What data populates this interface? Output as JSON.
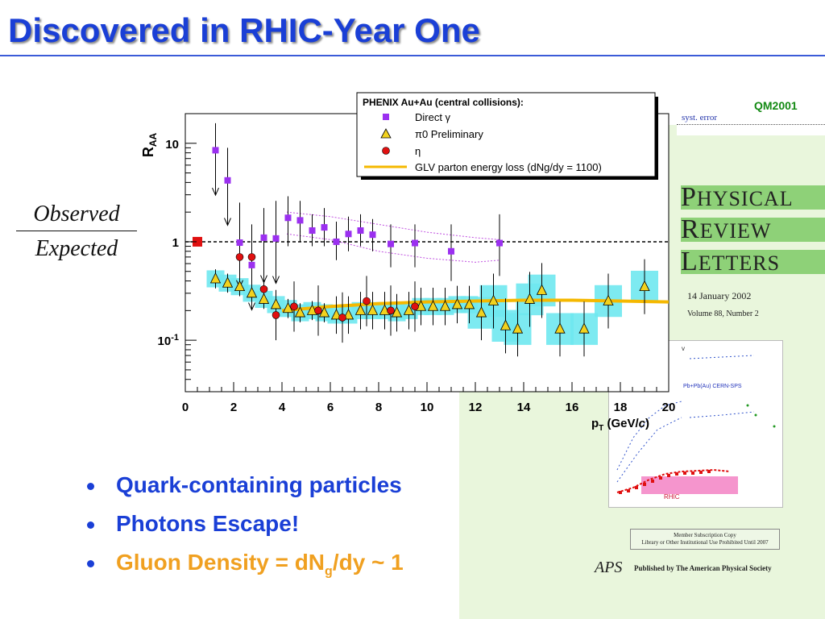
{
  "slide": {
    "title": "Discovered in RHIC-Year One",
    "fraction_numerator": "Observed",
    "fraction_denominator": "Expected",
    "badge": "QM2001",
    "bullets": [
      {
        "text": "Quark-containing particles",
        "color": "blue"
      },
      {
        "text": "Photons Escape!",
        "color": "blue"
      },
      {
        "text_pre": "Gluon Density = dN",
        "sub": "g",
        "text_post": "/dy ~ 1",
        "color": "orange"
      }
    ]
  },
  "journal": {
    "top_text": "syst. error",
    "words": [
      "HYSICAL",
      "EVIEW",
      "ETTERS"
    ],
    "initials": [
      "P",
      "R",
      "L"
    ],
    "date": "14 January 2002",
    "volume": "Volume 88, Number 2",
    "inset_label_sps": "Pb+Pb(Au) CERN-SPS",
    "inset_label_rhic": "RHIC",
    "subscription_line1": "Member Subscription Copy",
    "subscription_line2": "Library or Other Institutional Use Prohibited Until 2007",
    "aps_logo": "APS",
    "published_by": "Published by The American Physical Society"
  },
  "chart_data": {
    "type": "scatter",
    "y_scale": "log",
    "ylabel": "R_AA",
    "xlabel": "p_T (GeV/c)",
    "xlim": [
      0,
      20
    ],
    "ylim": [
      0.03,
      20
    ],
    "x_ticks": [
      "0",
      "2",
      "4",
      "6",
      "8",
      "10",
      "12",
      "14",
      "16",
      "18",
      "20"
    ],
    "y_ticks": [
      {
        "v": 10,
        "label": "10"
      },
      {
        "v": 1,
        "label": "1"
      },
      {
        "v": 0.1,
        "label": "10-1"
      }
    ],
    "reference_line": 1,
    "legend": {
      "title": "PHENIX Au+Au (central collisions):",
      "entries": [
        {
          "label": "Direct γ",
          "marker": "square",
          "color": "#9b30f0"
        },
        {
          "label": "π0 Preliminary",
          "marker": "triangle",
          "color": "#f2d21e"
        },
        {
          "label": "η",
          "marker": "circle",
          "color": "#e01010"
        },
        {
          "label": "GLV parton energy loss (dNg/dy = 1100)",
          "marker": "line",
          "color": "#f5b800"
        }
      ],
      "position": "top-right"
    },
    "series": [
      {
        "name": "Direct γ",
        "marker": "square",
        "color": "#9b30f0",
        "points": [
          {
            "x": 1.25,
            "y": 8.5,
            "upper": true,
            "err_hi": 16
          },
          {
            "x": 1.75,
            "y": 4.2,
            "upper": true,
            "err_hi": 9
          },
          {
            "x": 2.25,
            "y": 0.98,
            "upper": true,
            "err_hi": 2.5
          },
          {
            "x": 2.75,
            "y": 0.58,
            "upper": true,
            "err_hi": 1.5
          },
          {
            "x": 3.25,
            "y": 1.1,
            "upper": true,
            "err_hi": 2.2
          },
          {
            "x": 3.75,
            "y": 1.08,
            "upper": true,
            "err_hi": 2.6
          },
          {
            "x": 4.25,
            "y": 1.75,
            "err_lo": 0.9,
            "err_hi": 2.9
          },
          {
            "x": 4.75,
            "y": 1.65,
            "err_lo": 1.0,
            "err_hi": 2.6
          },
          {
            "x": 5.25,
            "y": 1.3,
            "err_lo": 0.9,
            "err_hi": 1.9
          },
          {
            "x": 5.75,
            "y": 1.4,
            "err_lo": 0.9,
            "err_hi": 2.2
          },
          {
            "x": 6.25,
            "y": 1.0,
            "err_lo": 0.65,
            "err_hi": 1.6
          },
          {
            "x": 6.75,
            "y": 1.2,
            "err_lo": 0.8,
            "err_hi": 1.8
          },
          {
            "x": 7.25,
            "y": 1.3,
            "err_lo": 0.9,
            "err_hi": 1.9
          },
          {
            "x": 7.75,
            "y": 1.18,
            "err_lo": 0.8,
            "err_hi": 1.7
          },
          {
            "x": 8.5,
            "y": 0.95,
            "err_lo": 0.55,
            "err_hi": 1.5
          },
          {
            "x": 9.5,
            "y": 0.97,
            "err_lo": 0.55,
            "err_hi": 1.5
          },
          {
            "x": 11,
            "y": 0.8,
            "err_lo": 0.4,
            "err_hi": 1.5
          },
          {
            "x": 13,
            "y": 0.97,
            "err_lo": 0.45,
            "err_hi": 1.9
          }
        ]
      },
      {
        "name": "π0 Preliminary",
        "marker": "triangle",
        "color": "#f2d21e",
        "points": [
          {
            "x": 1.25,
            "y": 0.42
          },
          {
            "x": 1.75,
            "y": 0.38
          },
          {
            "x": 2.25,
            "y": 0.35
          },
          {
            "x": 2.75,
            "y": 0.3
          },
          {
            "x": 3.25,
            "y": 0.26
          },
          {
            "x": 3.75,
            "y": 0.23
          },
          {
            "x": 4.25,
            "y": 0.21
          },
          {
            "x": 4.75,
            "y": 0.19
          },
          {
            "x": 5.25,
            "y": 0.2
          },
          {
            "x": 5.75,
            "y": 0.19
          },
          {
            "x": 6.25,
            "y": 0.18
          },
          {
            "x": 6.75,
            "y": 0.18
          },
          {
            "x": 7.25,
            "y": 0.2
          },
          {
            "x": 7.75,
            "y": 0.2
          },
          {
            "x": 8.25,
            "y": 0.2
          },
          {
            "x": 8.75,
            "y": 0.19
          },
          {
            "x": 9.25,
            "y": 0.2
          },
          {
            "x": 9.75,
            "y": 0.22
          },
          {
            "x": 10.25,
            "y": 0.22
          },
          {
            "x": 10.75,
            "y": 0.22
          },
          {
            "x": 11.25,
            "y": 0.23
          },
          {
            "x": 11.75,
            "y": 0.23
          },
          {
            "x": 12.25,
            "y": 0.19
          },
          {
            "x": 12.75,
            "y": 0.25
          },
          {
            "x": 13.25,
            "y": 0.14
          },
          {
            "x": 13.75,
            "y": 0.13
          },
          {
            "x": 14.25,
            "y": 0.26
          },
          {
            "x": 14.75,
            "y": 0.32
          },
          {
            "x": 15.5,
            "y": 0.13
          },
          {
            "x": 16.5,
            "y": 0.13
          },
          {
            "x": 17.5,
            "y": 0.25
          },
          {
            "x": 19,
            "y": 0.35
          }
        ]
      },
      {
        "name": "η",
        "marker": "circle",
        "color": "#e01010",
        "points": [
          {
            "x": 2.25,
            "y": 0.7
          },
          {
            "x": 2.75,
            "y": 0.7
          },
          {
            "x": 3.25,
            "y": 0.33
          },
          {
            "x": 3.75,
            "y": 0.18
          },
          {
            "x": 4.5,
            "y": 0.22
          },
          {
            "x": 5.5,
            "y": 0.2
          },
          {
            "x": 6.5,
            "y": 0.17
          },
          {
            "x": 7.5,
            "y": 0.25
          },
          {
            "x": 8.5,
            "y": 0.2
          },
          {
            "x": 9.5,
            "y": 0.22
          }
        ]
      },
      {
        "name": "GLV parton energy loss (dNg/dy = 1100)",
        "marker": "line",
        "color": "#f5b800",
        "points": [
          {
            "x": 4,
            "y": 0.2
          },
          {
            "x": 6,
            "y": 0.22
          },
          {
            "x": 8,
            "y": 0.235
          },
          {
            "x": 10,
            "y": 0.245
          },
          {
            "x": 12,
            "y": 0.25
          },
          {
            "x": 14,
            "y": 0.255
          },
          {
            "x": 16,
            "y": 0.255
          },
          {
            "x": 18,
            "y": 0.25
          },
          {
            "x": 20,
            "y": 0.245
          }
        ]
      }
    ],
    "reference_point": {
      "x": 0.5,
      "y": 1.0,
      "color": "#e01010",
      "marker": "square"
    }
  },
  "colors": {
    "title": "#1a3fd6",
    "bullet_blue": "#1a3fd6",
    "bullet_orange": "#f0a020",
    "syst_band": "#6fe8f0",
    "journal_band": "#8ed178",
    "journal_bg": "#e9f6dc"
  }
}
